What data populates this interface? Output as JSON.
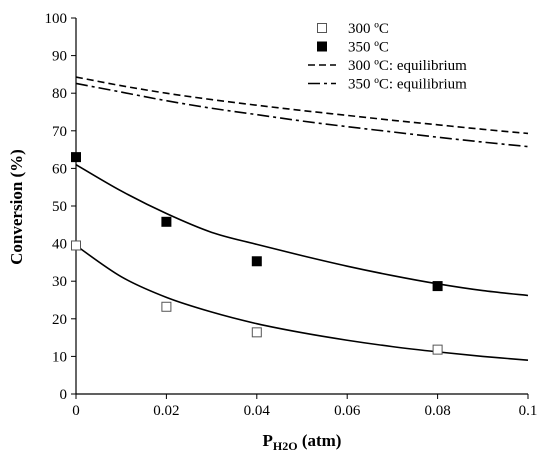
{
  "chart_data": {
    "type": "scatter",
    "title": "",
    "xlabel": "P",
    "xlabel_subscript": "H2O",
    "xlabel_suffix": " (atm)",
    "ylabel": "Conversion  (%)",
    "xlim": [
      0,
      0.1
    ],
    "ylim": [
      0,
      100
    ],
    "x_ticks": [
      0,
      0.02,
      0.04,
      0.06,
      0.08,
      0.1
    ],
    "x_tick_labels": [
      "0",
      "0.02",
      "0.04",
      "0.06",
      "0.08",
      "0.1"
    ],
    "y_ticks": [
      0,
      10,
      20,
      30,
      40,
      50,
      60,
      70,
      80,
      90,
      100
    ],
    "y_tick_labels": [
      "0",
      "10",
      "20",
      "30",
      "40",
      "50",
      "60",
      "70",
      "80",
      "90",
      "100"
    ],
    "grid": false,
    "legend_position": "top-right",
    "series": [
      {
        "name": "300 ºC",
        "kind": "points",
        "marker": "open-square",
        "x": [
          0,
          0.02,
          0.04,
          0.08
        ],
        "y": [
          39.5,
          23.2,
          16.4,
          11.8
        ]
      },
      {
        "name": "350 ºC",
        "kind": "points",
        "marker": "filled-square",
        "x": [
          0,
          0.02,
          0.04,
          0.08
        ],
        "y": [
          63.0,
          45.8,
          35.3,
          28.7
        ]
      },
      {
        "name": "300 ºC: equilibrium",
        "kind": "line",
        "dash": "dashed",
        "x": [
          0,
          0.01,
          0.02,
          0.03,
          0.04,
          0.05,
          0.06,
          0.07,
          0.08,
          0.09,
          0.1
        ],
        "y": [
          84.3,
          82.0,
          80.0,
          78.3,
          76.8,
          75.4,
          74.1,
          72.8,
          71.6,
          70.4,
          69.3
        ]
      },
      {
        "name": "350 ºC: equilibrium",
        "kind": "line",
        "dash": "dash-dot",
        "x": [
          0,
          0.01,
          0.02,
          0.03,
          0.04,
          0.05,
          0.06,
          0.07,
          0.08,
          0.09,
          0.1
        ],
        "y": [
          82.6,
          80.3,
          78.0,
          76.0,
          74.3,
          72.6,
          71.1,
          69.7,
          68.3,
          67.0,
          65.8
        ]
      },
      {
        "name": "",
        "kind": "line",
        "dash": "solid",
        "x": [
          0,
          0.01,
          0.02,
          0.03,
          0.04,
          0.05,
          0.06,
          0.07,
          0.08,
          0.09,
          0.1
        ],
        "y": [
          39.5,
          31.2,
          25.7,
          21.8,
          18.7,
          16.3,
          14.3,
          12.6,
          11.2,
          10.0,
          9.0
        ]
      },
      {
        "name": "",
        "kind": "line",
        "dash": "solid",
        "x": [
          0,
          0.01,
          0.02,
          0.03,
          0.04,
          0.05,
          0.06,
          0.07,
          0.08,
          0.09,
          0.1
        ],
        "y": [
          61.0,
          54.0,
          48.0,
          43.0,
          39.8,
          36.8,
          34.0,
          31.5,
          29.3,
          27.5,
          26.2
        ]
      }
    ]
  }
}
